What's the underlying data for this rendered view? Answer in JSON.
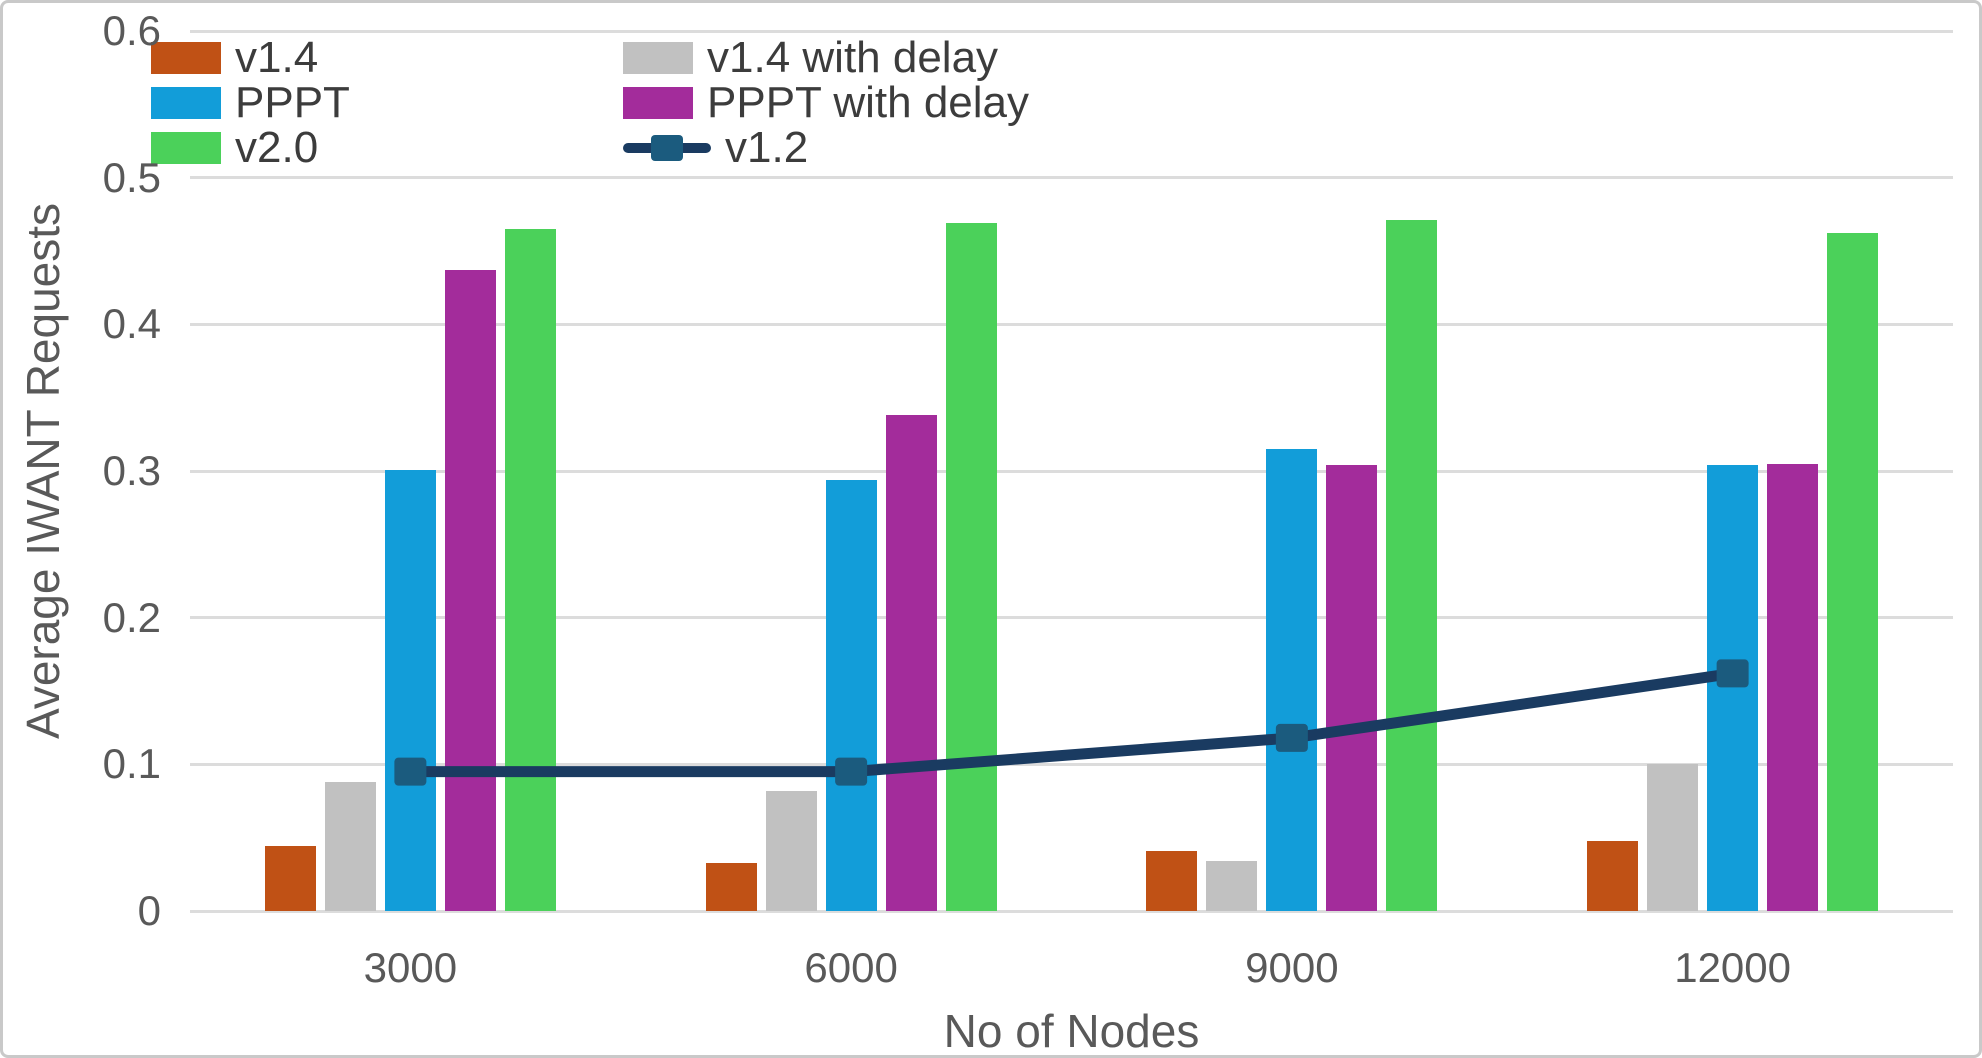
{
  "chart_data": {
    "type": "bar",
    "subtype": "grouped-bars-with-line-overlay",
    "title": "",
    "xlabel": "No of Nodes",
    "ylabel": "Average IWANT Requests",
    "categories": [
      "3000",
      "6000",
      "9000",
      "12000"
    ],
    "bar_series": [
      {
        "name": "v1.4",
        "color": "#c05115",
        "values": [
          0.044,
          0.033,
          0.041,
          0.048
        ]
      },
      {
        "name": "v1.4 with delay",
        "color": "#c1c1c1",
        "values": [
          0.088,
          0.082,
          0.034,
          0.1
        ]
      },
      {
        "name": "PPPT",
        "color": "#129dd9",
        "values": [
          0.301,
          0.294,
          0.315,
          0.304
        ]
      },
      {
        "name": "PPPT with delay",
        "color": "#a32c9b",
        "values": [
          0.437,
          0.338,
          0.304,
          0.305
        ]
      },
      {
        "name": "v2.0",
        "color": "#4bd15a",
        "values": [
          0.465,
          0.469,
          0.471,
          0.462
        ]
      }
    ],
    "line_series": {
      "name": "v1.2",
      "line_color": "#1a3b61",
      "marker_color": "#1b5b7e",
      "marker_shape": "square",
      "values": [
        0.095,
        0.095,
        0.118,
        0.162
      ]
    },
    "ylim": [
      0,
      0.6
    ],
    "yticks": [
      {
        "label": "0",
        "value": 0.0
      },
      {
        "label": "0.1",
        "value": 0.1
      },
      {
        "label": "0.2",
        "value": 0.2
      },
      {
        "label": "0.3",
        "value": 0.3
      },
      {
        "label": "0.4",
        "value": 0.4
      },
      {
        "label": "0.5",
        "value": 0.5
      },
      {
        "label": "0.6",
        "value": 0.6
      }
    ],
    "grid": "horizontal-only",
    "gridline_color": "#dcdcdc",
    "legend": {
      "position": "top-left-inside",
      "columns": [
        [
          "v1.4",
          "PPPT",
          "v2.0"
        ],
        [
          "v1.4 with delay",
          "PPPT with delay",
          "v1.2"
        ]
      ]
    },
    "text_colors": {
      "axis_ticks": "#595959",
      "axis_titles": "#595959",
      "legend_labels": "#3c3c3c"
    }
  }
}
